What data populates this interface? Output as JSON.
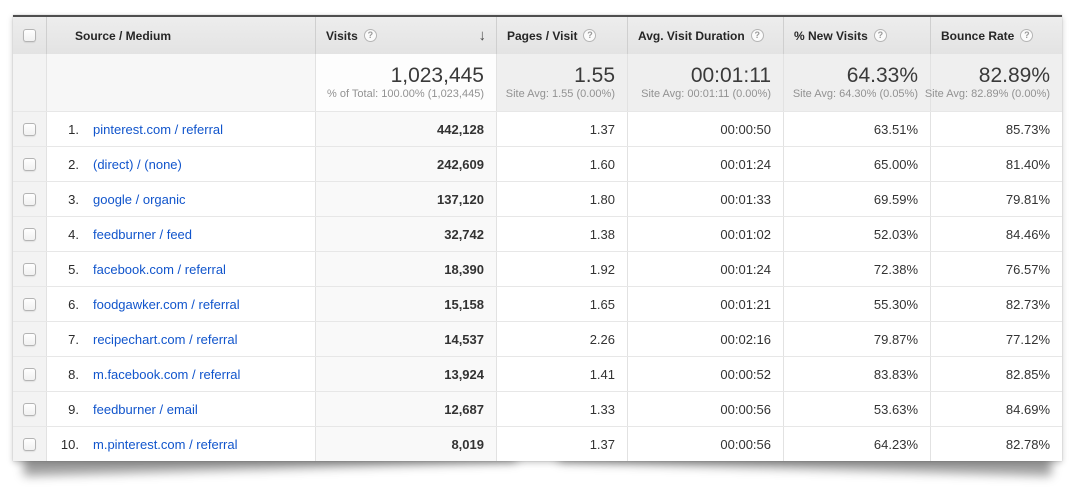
{
  "table": {
    "header": {
      "source_medium": "Source / Medium",
      "visits": "Visits",
      "pages_per_visit": "Pages / Visit",
      "avg_visit_duration": "Avg. Visit Duration",
      "pct_new_visits": "% New Visits",
      "bounce_rate": "Bounce Rate"
    },
    "icons": {
      "help": "?",
      "sort_desc": "↓"
    },
    "sorted_column": "Visits",
    "summary": {
      "visits_value": "1,023,445",
      "visits_sub": "% of Total: 100.00% (1,023,445)",
      "pages_value": "1.55",
      "pages_sub": "Site Avg: 1.55 (0.00%)",
      "duration_value": "00:01:11",
      "duration_sub": "Site Avg: 00:01:11 (0.00%)",
      "new_visits_value": "64.33%",
      "new_visits_sub": "Site Avg: 64.30% (0.05%)",
      "bounce_value": "82.89%",
      "bounce_sub": "Site Avg: 82.89% (0.00%)"
    },
    "rows": [
      {
        "rank": "1.",
        "source_medium": "pinterest.com / referral",
        "visits": "442,128",
        "pages_per_visit": "1.37",
        "avg_visit_duration": "00:00:50",
        "pct_new_visits": "63.51%",
        "bounce_rate": "85.73%"
      },
      {
        "rank": "2.",
        "source_medium": "(direct) / (none)",
        "visits": "242,609",
        "pages_per_visit": "1.60",
        "avg_visit_duration": "00:01:24",
        "pct_new_visits": "65.00%",
        "bounce_rate": "81.40%"
      },
      {
        "rank": "3.",
        "source_medium": "google / organic",
        "visits": "137,120",
        "pages_per_visit": "1.80",
        "avg_visit_duration": "00:01:33",
        "pct_new_visits": "69.59%",
        "bounce_rate": "79.81%"
      },
      {
        "rank": "4.",
        "source_medium": "feedburner / feed",
        "visits": "32,742",
        "pages_per_visit": "1.38",
        "avg_visit_duration": "00:01:02",
        "pct_new_visits": "52.03%",
        "bounce_rate": "84.46%"
      },
      {
        "rank": "5.",
        "source_medium": "facebook.com / referral",
        "visits": "18,390",
        "pages_per_visit": "1.92",
        "avg_visit_duration": "00:01:24",
        "pct_new_visits": "72.38%",
        "bounce_rate": "76.57%"
      },
      {
        "rank": "6.",
        "source_medium": "foodgawker.com / referral",
        "visits": "15,158",
        "pages_per_visit": "1.65",
        "avg_visit_duration": "00:01:21",
        "pct_new_visits": "55.30%",
        "bounce_rate": "82.73%"
      },
      {
        "rank": "7.",
        "source_medium": "recipechart.com / referral",
        "visits": "14,537",
        "pages_per_visit": "2.26",
        "avg_visit_duration": "00:02:16",
        "pct_new_visits": "79.87%",
        "bounce_rate": "77.12%"
      },
      {
        "rank": "8.",
        "source_medium": "m.facebook.com / referral",
        "visits": "13,924",
        "pages_per_visit": "1.41",
        "avg_visit_duration": "00:00:52",
        "pct_new_visits": "83.83%",
        "bounce_rate": "82.85%"
      },
      {
        "rank": "9.",
        "source_medium": "feedburner / email",
        "visits": "12,687",
        "pages_per_visit": "1.33",
        "avg_visit_duration": "00:00:56",
        "pct_new_visits": "53.63%",
        "bounce_rate": "84.69%"
      },
      {
        "rank": "10.",
        "source_medium": "m.pinterest.com / referral",
        "visits": "8,019",
        "pages_per_visit": "1.37",
        "avg_visit_duration": "00:00:56",
        "pct_new_visits": "64.23%",
        "bounce_rate": "82.78%"
      }
    ]
  },
  "colors": {
    "link": "#1155cc",
    "header_bg": "#e7e7e7",
    "header_top_border": "#4e4e4e",
    "summary_metric_bg": "#efefef",
    "sorted_column_bg": "#f9f9f9"
  }
}
